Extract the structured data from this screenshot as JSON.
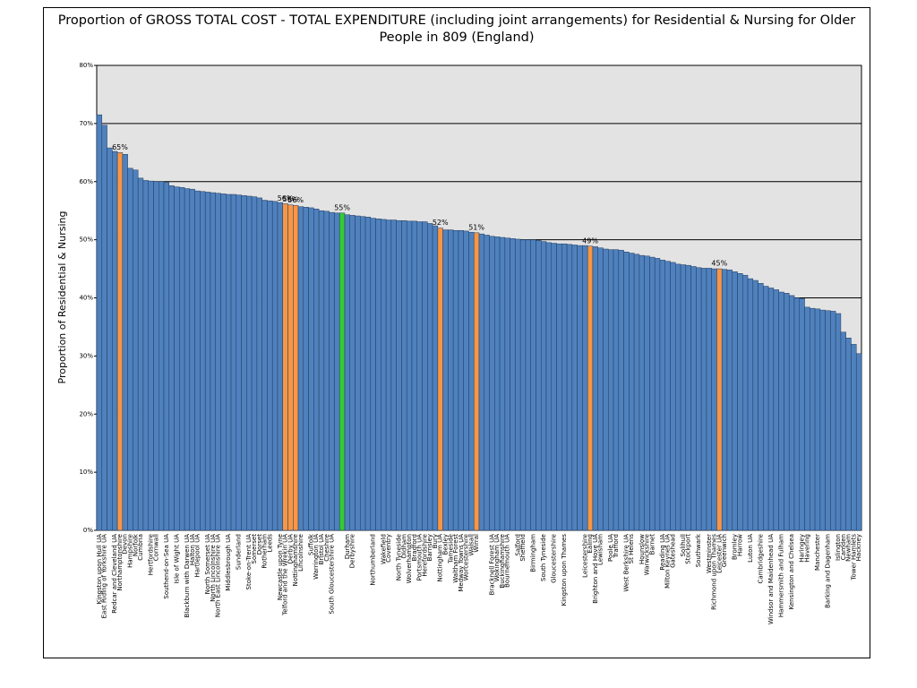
{
  "chart_data": {
    "type": "bar",
    "title": "Proportion of GROSS TOTAL COST - TOTAL EXPENDITURE (including joint arrangements) for Residential & Nursing for Older People in 809 (England)",
    "y_label": "Proportion of Residential & Nursing",
    "color": "#4f81bd",
    "highlight_color": "#f79646",
    "highlighted": [
      4,
      36,
      37,
      38,
      66,
      73,
      95,
      120
    ],
    "reference": 47,
    "reference_color": "#33cc33",
    "reference_label_color": "#ff0000",
    "grid": true,
    "ylim": [
      0,
      80
    ],
    "yticks": [
      {
        "value": 0,
        "label": "0%"
      },
      {
        "value": 10,
        "label": "10%"
      },
      {
        "value": 20,
        "label": "20%"
      },
      {
        "value": 30,
        "label": "30%"
      },
      {
        "value": 40,
        "label": "40%"
      },
      {
        "value": 50,
        "label": "50%"
      },
      {
        "value": 60,
        "label": "60%"
      },
      {
        "value": 70,
        "label": "70%"
      },
      {
        "value": 80,
        "label": "80%"
      }
    ],
    "categories": [
      "Kingston upon Hull UA",
      "East Riding of Yorkshire UA",
      null,
      "Redcar and Cleveland UA",
      "Northamptonshire",
      "Devon",
      "Hampshire",
      "Norfolk",
      "Cumbria",
      null,
      "Hertfordshire",
      "Cornwall",
      null,
      "Southend-on-Sea UA",
      null,
      "Isle of Wight UA",
      null,
      "Blackburn with Darwen UA",
      "Halton UA",
      "Hartlepool UA",
      null,
      "North Somerset UA",
      "North Lincolnshire UA",
      "North East Lincolnshire UA",
      null,
      "Middlesbrough UA",
      null,
      "Sunderland",
      null,
      "Stoke-on-Trent UA",
      "Somerset",
      "Dorset",
      "Rotherham",
      "Leeds",
      null,
      "Newcastle upon Tyne",
      "Telford and the Wrekin UA",
      "Derby UA",
      "Nottinghamshire",
      "Lincolnshire",
      null,
      "Suffolk",
      "Warrington UA",
      "Bristol UA",
      "Cheshire",
      "South Gloucestershire UA",
      null,
      null,
      "Durham",
      "Derbyshire",
      null,
      null,
      null,
      "Northumberland",
      null,
      "Wakefield",
      "Coventry",
      null,
      "North Tyneside",
      "Oldham",
      "Wolverhampton",
      "Bradford",
      "Portsmouth UA",
      "Herefordshire",
      "Barnsley",
      "Bury",
      "Nottingham UA",
      "Bexley",
      "Tameside",
      "Waltham Forest",
      "Medway Towns UA",
      "Worcestershire",
      "Walsall",
      "Wirral",
      null,
      null,
      "Bracknell Forest UA",
      "Wokingham UA",
      "Buckinghamshire",
      "Bournemouth UA",
      null,
      "Salford",
      "Sheffield",
      null,
      "Birmingham",
      null,
      "South Tyneside",
      null,
      "Gloucestershire",
      null,
      "Kingston upon Thames",
      null,
      null,
      null,
      "Leicestershire",
      "Ealing",
      "Brighton and Hove UA",
      "Lewisham",
      null,
      "Poole UA",
      "Trafford",
      null,
      "West Berkshire UA",
      "St Helens",
      null,
      "Hounslow",
      "Warwickshire",
      "Barnet",
      null,
      "Reading UA",
      "Milton Keynes UA",
      "Gateshead",
      null,
      "Solihull",
      "Stockport",
      null,
      "Southwark",
      null,
      "Westminster",
      "Richmond upon Thames",
      "Leicester UA",
      "Greenwich",
      null,
      "Bromley",
      "Harrow",
      null,
      "Luton UA",
      null,
      "Cambridgeshire",
      null,
      "Windsor and Maidenhead UA",
      null,
      "Hammersmith and Fulham",
      null,
      "Kensington and Chelsea",
      null,
      "Haringey",
      "Havering",
      null,
      "Manchester",
      null,
      "Barking and Dagenham",
      null,
      "Islington",
      "Camden",
      "Newham",
      "Tower Hamlets",
      "Hackney"
    ],
    "values": [
      71.5,
      69.7,
      65.8,
      65.2,
      65.0,
      64.7,
      62.3,
      62.0,
      60.6,
      60.2,
      60.1,
      60.0,
      60.0,
      59.9,
      59.3,
      59.1,
      59.0,
      58.8,
      58.7,
      58.4,
      58.3,
      58.2,
      58.1,
      58.0,
      57.9,
      57.8,
      57.8,
      57.7,
      57.6,
      57.5,
      57.4,
      57.2,
      56.8,
      56.7,
      56.6,
      56.4,
      56.2,
      56.0,
      55.9,
      55.7,
      55.6,
      55.5,
      55.3,
      55.0,
      54.9,
      54.7,
      54.6,
      54.6,
      54.3,
      54.2,
      54.1,
      54.0,
      53.9,
      53.7,
      53.6,
      53.5,
      53.4,
      53.4,
      53.3,
      53.3,
      53.2,
      53.2,
      53.1,
      53.1,
      52.8,
      52.4,
      52.0,
      51.7,
      51.7,
      51.6,
      51.6,
      51.5,
      51.3,
      51.2,
      51.0,
      50.8,
      50.6,
      50.5,
      50.4,
      50.3,
      50.2,
      50.1,
      50.0,
      50.0,
      50.0,
      49.9,
      49.7,
      49.5,
      49.4,
      49.3,
      49.3,
      49.2,
      49.1,
      49.0,
      49.0,
      48.9,
      48.8,
      48.6,
      48.4,
      48.3,
      48.3,
      48.2,
      47.9,
      47.7,
      47.5,
      47.3,
      47.2,
      47.0,
      46.8,
      46.5,
      46.3,
      46.1,
      45.8,
      45.7,
      45.6,
      45.4,
      45.2,
      45.1,
      45.1,
      45.0,
      45.0,
      44.9,
      44.8,
      44.5,
      44.2,
      43.9,
      43.3,
      43.0,
      42.5,
      42.0,
      41.7,
      41.4,
      41.0,
      40.8,
      40.4,
      40.0,
      39.9,
      38.4,
      38.2,
      38.1,
      37.9,
      37.8,
      37.7,
      37.3,
      34.1,
      33.1,
      32.0,
      30.4
    ],
    "value_labels": [
      null,
      null,
      null,
      null,
      "65%",
      null,
      null,
      null,
      null,
      null,
      null,
      null,
      null,
      null,
      null,
      null,
      null,
      null,
      null,
      null,
      null,
      null,
      null,
      null,
      null,
      null,
      null,
      null,
      null,
      null,
      null,
      null,
      null,
      null,
      null,
      null,
      "56%",
      "56%",
      "56%",
      null,
      null,
      null,
      null,
      null,
      null,
      null,
      null,
      "55%",
      null,
      null,
      null,
      null,
      null,
      null,
      null,
      null,
      null,
      null,
      null,
      null,
      null,
      null,
      null,
      null,
      null,
      null,
      "52%",
      null,
      null,
      null,
      null,
      null,
      null,
      "51%",
      null,
      null,
      null,
      null,
      null,
      null,
      null,
      null,
      null,
      null,
      null,
      null,
      null,
      null,
      null,
      null,
      null,
      null,
      null,
      null,
      null,
      "49%",
      null,
      null,
      null,
      null,
      null,
      null,
      null,
      null,
      null,
      null,
      null,
      null,
      null,
      null,
      null,
      null,
      null,
      null,
      null,
      null,
      null,
      null,
      null,
      null,
      "45%",
      null,
      null,
      null,
      null,
      null,
      null,
      null,
      null,
      null,
      null,
      null,
      null,
      null,
      null,
      null,
      null,
      null,
      null,
      null,
      null,
      null,
      null,
      null,
      null,
      null,
      null,
      null
    ]
  }
}
